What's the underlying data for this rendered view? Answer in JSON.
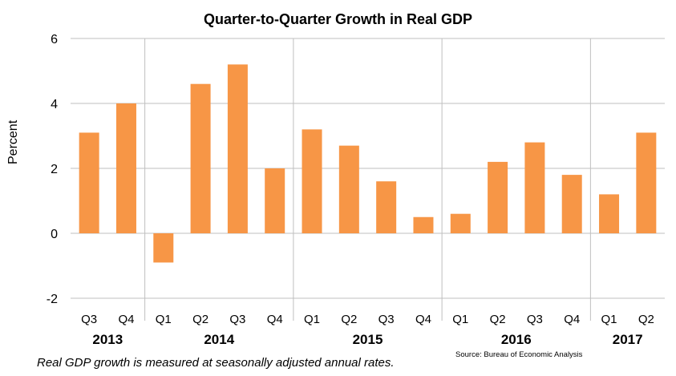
{
  "title": "Quarter-to-Quarter Growth in Real GDP",
  "footnote": "Real GDP growth is measured at seasonally adjusted annual rates.",
  "source": "Source: Bureau of Economic Analysis",
  "chart_data": {
    "type": "bar",
    "title": "Quarter-to-Quarter Growth in Real GDP",
    "xlabel": "",
    "ylabel": "Percent",
    "ylim": [
      -2,
      6
    ],
    "yticks": [
      -2,
      0,
      2,
      4,
      6
    ],
    "grid": true,
    "legend": "none",
    "bar_color": "#F79646",
    "categories": [
      "Q3",
      "Q4",
      "Q1",
      "Q2",
      "Q3",
      "Q4",
      "Q1",
      "Q2",
      "Q3",
      "Q4",
      "Q1",
      "Q2",
      "Q3",
      "Q4",
      "Q1",
      "Q2"
    ],
    "years": [
      {
        "label": "2013",
        "count": 2
      },
      {
        "label": "2014",
        "count": 4
      },
      {
        "label": "2015",
        "count": 4
      },
      {
        "label": "2016",
        "count": 4
      },
      {
        "label": "2017",
        "count": 2
      }
    ],
    "values": [
      3.1,
      4.0,
      -0.9,
      4.6,
      5.2,
      2.0,
      3.2,
      2.7,
      1.6,
      0.5,
      0.6,
      2.2,
      2.8,
      1.8,
      1.2,
      3.1
    ]
  }
}
